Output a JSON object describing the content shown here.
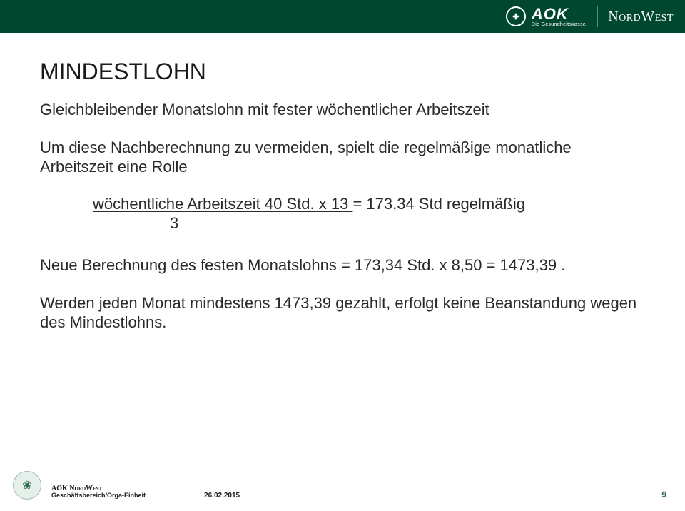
{
  "header": {
    "brand": "AOK",
    "tagline": "Die Gesundheitskasse.",
    "region": "NordWest",
    "circle_glyph": "✚"
  },
  "content": {
    "title": "MINDESTLOHN",
    "subtitle": "Gleichbleibender Monatslohn  mit fester wöchentlicher Arbeitszeit",
    "para1": "Um diese Nachberechnung zu vermeiden, spielt die regelmäßige monatliche Arbeitszeit eine Rolle",
    "formula_top": "wöchentliche Arbeitszeit 40 Std. x 13 ",
    "formula_tail": "= 173,34 Std regelmäßig",
    "formula_divisor": "3",
    "para2": "Neue Berechnung des festen Monatslohns = 173,34 Std. x 8,50 = 1473,39 .",
    "para3": "Werden jeden Monat mindestens 1473,39 gezahlt, erfolgt keine Beanstandung wegen des Mindestlohns."
  },
  "footer": {
    "seal_glyph": "❀",
    "line1_brand": "AOK ",
    "line1_region": "NordWest",
    "line2": "Geschäftsbereich/Orga-Einheit",
    "date": "26.02.2015",
    "page": "9"
  },
  "colors": {
    "header_bg": "#004730",
    "text": "#1a1a1a",
    "accent": "#2e6e55"
  }
}
